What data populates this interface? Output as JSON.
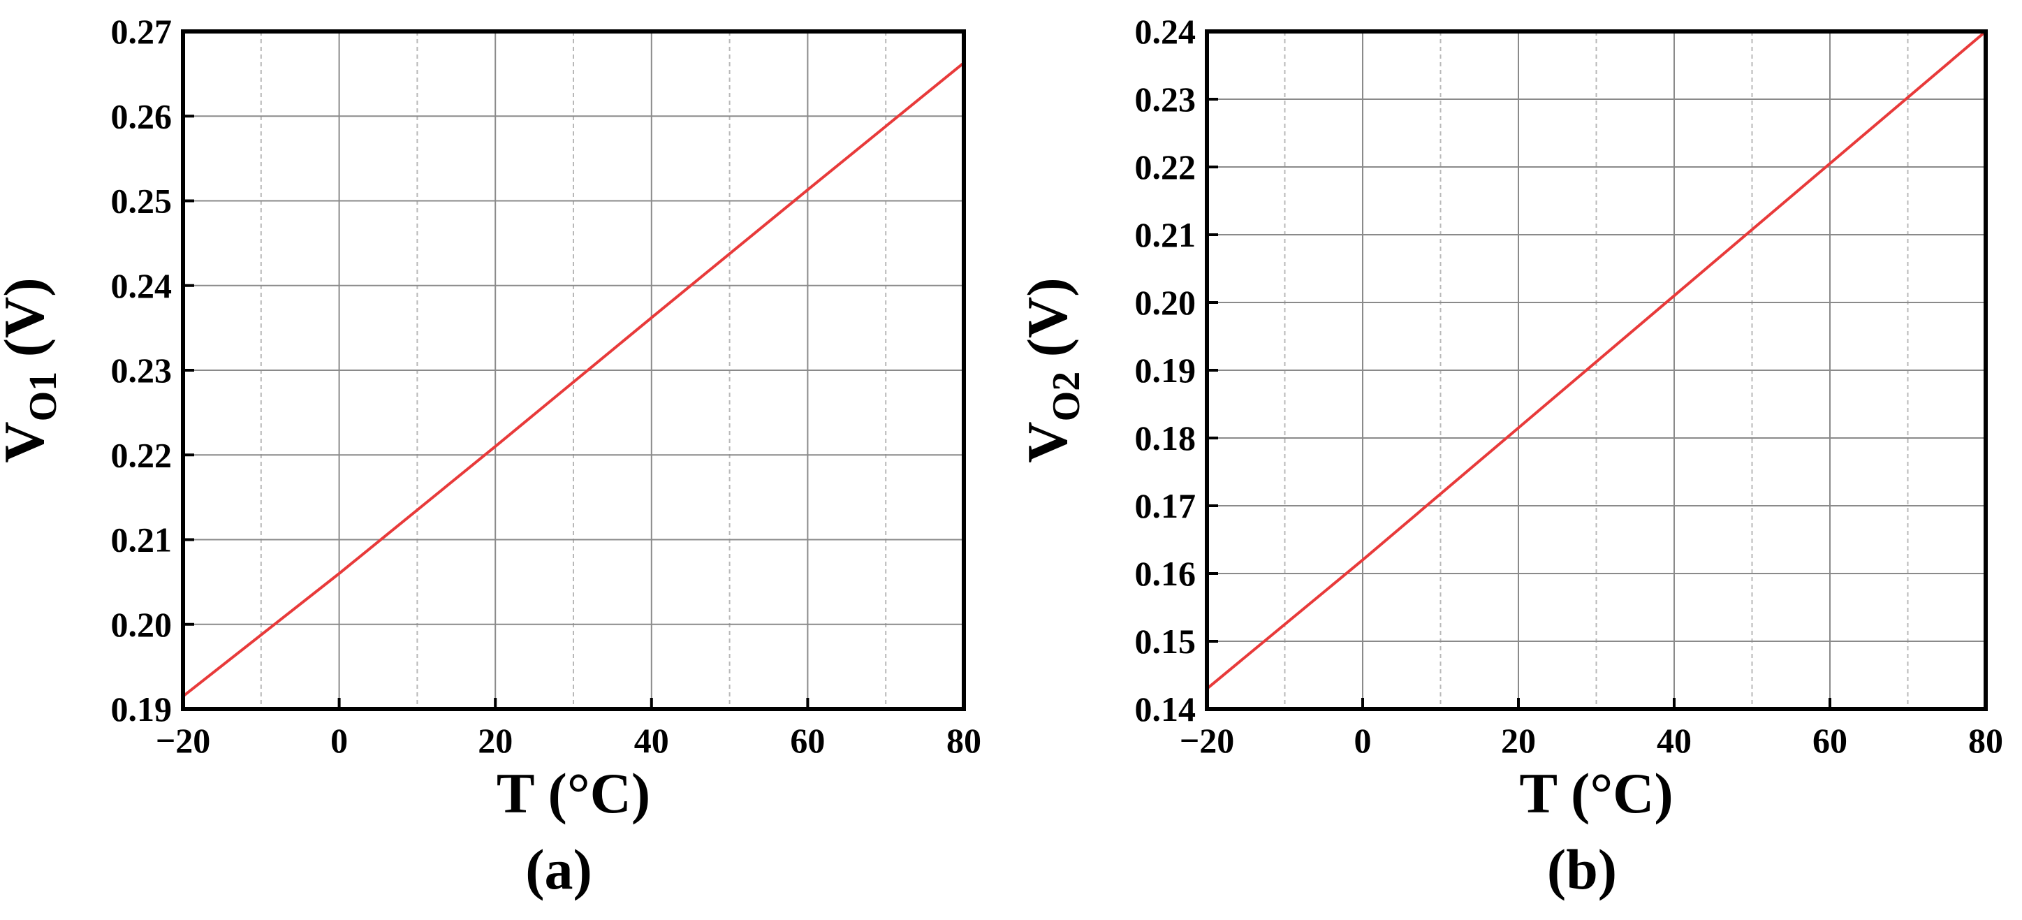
{
  "chart_data": [
    {
      "type": "line",
      "panel_label": "(a)",
      "xlabel": "T (°C)",
      "ylabel": {
        "base": "V",
        "subscript": "O1",
        "unit": " (V)"
      },
      "xlim": [
        -20,
        80
      ],
      "ylim": [
        0.19,
        0.27
      ],
      "xticks": [
        -20,
        0,
        20,
        40,
        60,
        80
      ],
      "xtick_labels": [
        "−20",
        "0",
        "20",
        "40",
        "60",
        "80"
      ],
      "xminor": [
        -10,
        10,
        30,
        50,
        70
      ],
      "yticks": [
        0.19,
        0.2,
        0.21,
        0.22,
        0.23,
        0.24,
        0.25,
        0.26,
        0.27
      ],
      "ytick_labels": [
        "0.19",
        "0.20",
        "0.21",
        "0.22",
        "0.23",
        "0.24",
        "0.25",
        "0.26",
        "0.27"
      ],
      "grid": true,
      "series": [
        {
          "x": [
            -20,
            0,
            20,
            40,
            60,
            80
          ],
          "y": [
            0.1915,
            0.206,
            0.221,
            0.2362,
            0.2513,
            0.2663
          ]
        }
      ]
    },
    {
      "type": "line",
      "panel_label": "(b)",
      "xlabel": "T (°C)",
      "ylabel": {
        "base": "V",
        "subscript": "O2",
        "unit": " (V)"
      },
      "xlim": [
        -20,
        80
      ],
      "ylim": [
        0.14,
        0.24
      ],
      "xticks": [
        -20,
        0,
        20,
        40,
        60,
        80
      ],
      "xtick_labels": [
        "−20",
        "0",
        "20",
        "40",
        "60",
        "80"
      ],
      "xminor": [
        -10,
        10,
        30,
        50,
        70
      ],
      "yticks": [
        0.14,
        0.15,
        0.16,
        0.17,
        0.18,
        0.19,
        0.2,
        0.21,
        0.22,
        0.23,
        0.24
      ],
      "ytick_labels": [
        "0.14",
        "0.15",
        "0.16",
        "0.17",
        "0.18",
        "0.19",
        "0.20",
        "0.21",
        "0.22",
        "0.23",
        "0.24"
      ],
      "grid": true,
      "series": [
        {
          "x": [
            -20,
            0,
            20,
            40,
            60,
            80
          ],
          "y": [
            0.143,
            0.162,
            0.1815,
            0.201,
            0.2205,
            0.24
          ]
        }
      ]
    }
  ],
  "colors": {
    "line": "#e83a3a",
    "grid_major": "#8a8a8a",
    "grid_minor": "#b8b8b8",
    "frame": "#000000",
    "text": "#000000"
  }
}
